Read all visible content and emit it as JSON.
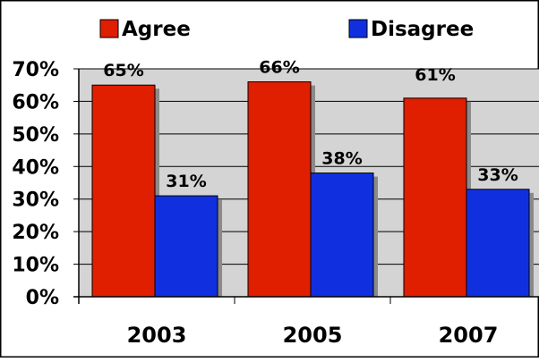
{
  "chart_data": {
    "type": "bar",
    "title": "",
    "xlabel": "",
    "ylabel": "",
    "categories": [
      "2003",
      "2005",
      "2007"
    ],
    "series": [
      {
        "name": "Agree",
        "values": [
          65,
          66,
          61
        ],
        "labels": [
          "65%",
          "66%",
          "61%"
        ],
        "color": "#e01e00"
      },
      {
        "name": "Disagree",
        "values": [
          31,
          38,
          33
        ],
        "labels": [
          "31%",
          "38%",
          "33%"
        ],
        "color": "#1030e0"
      }
    ],
    "ylim": [
      0,
      70
    ],
    "yticks": [
      0,
      10,
      20,
      30,
      40,
      50,
      60,
      70
    ],
    "ytick_labels": [
      "0%",
      "10%",
      "20%",
      "30%",
      "40%",
      "50%",
      "60%",
      "70%"
    ],
    "grid": true,
    "legend_position": "top",
    "plot_background": "#d4d4d4"
  }
}
